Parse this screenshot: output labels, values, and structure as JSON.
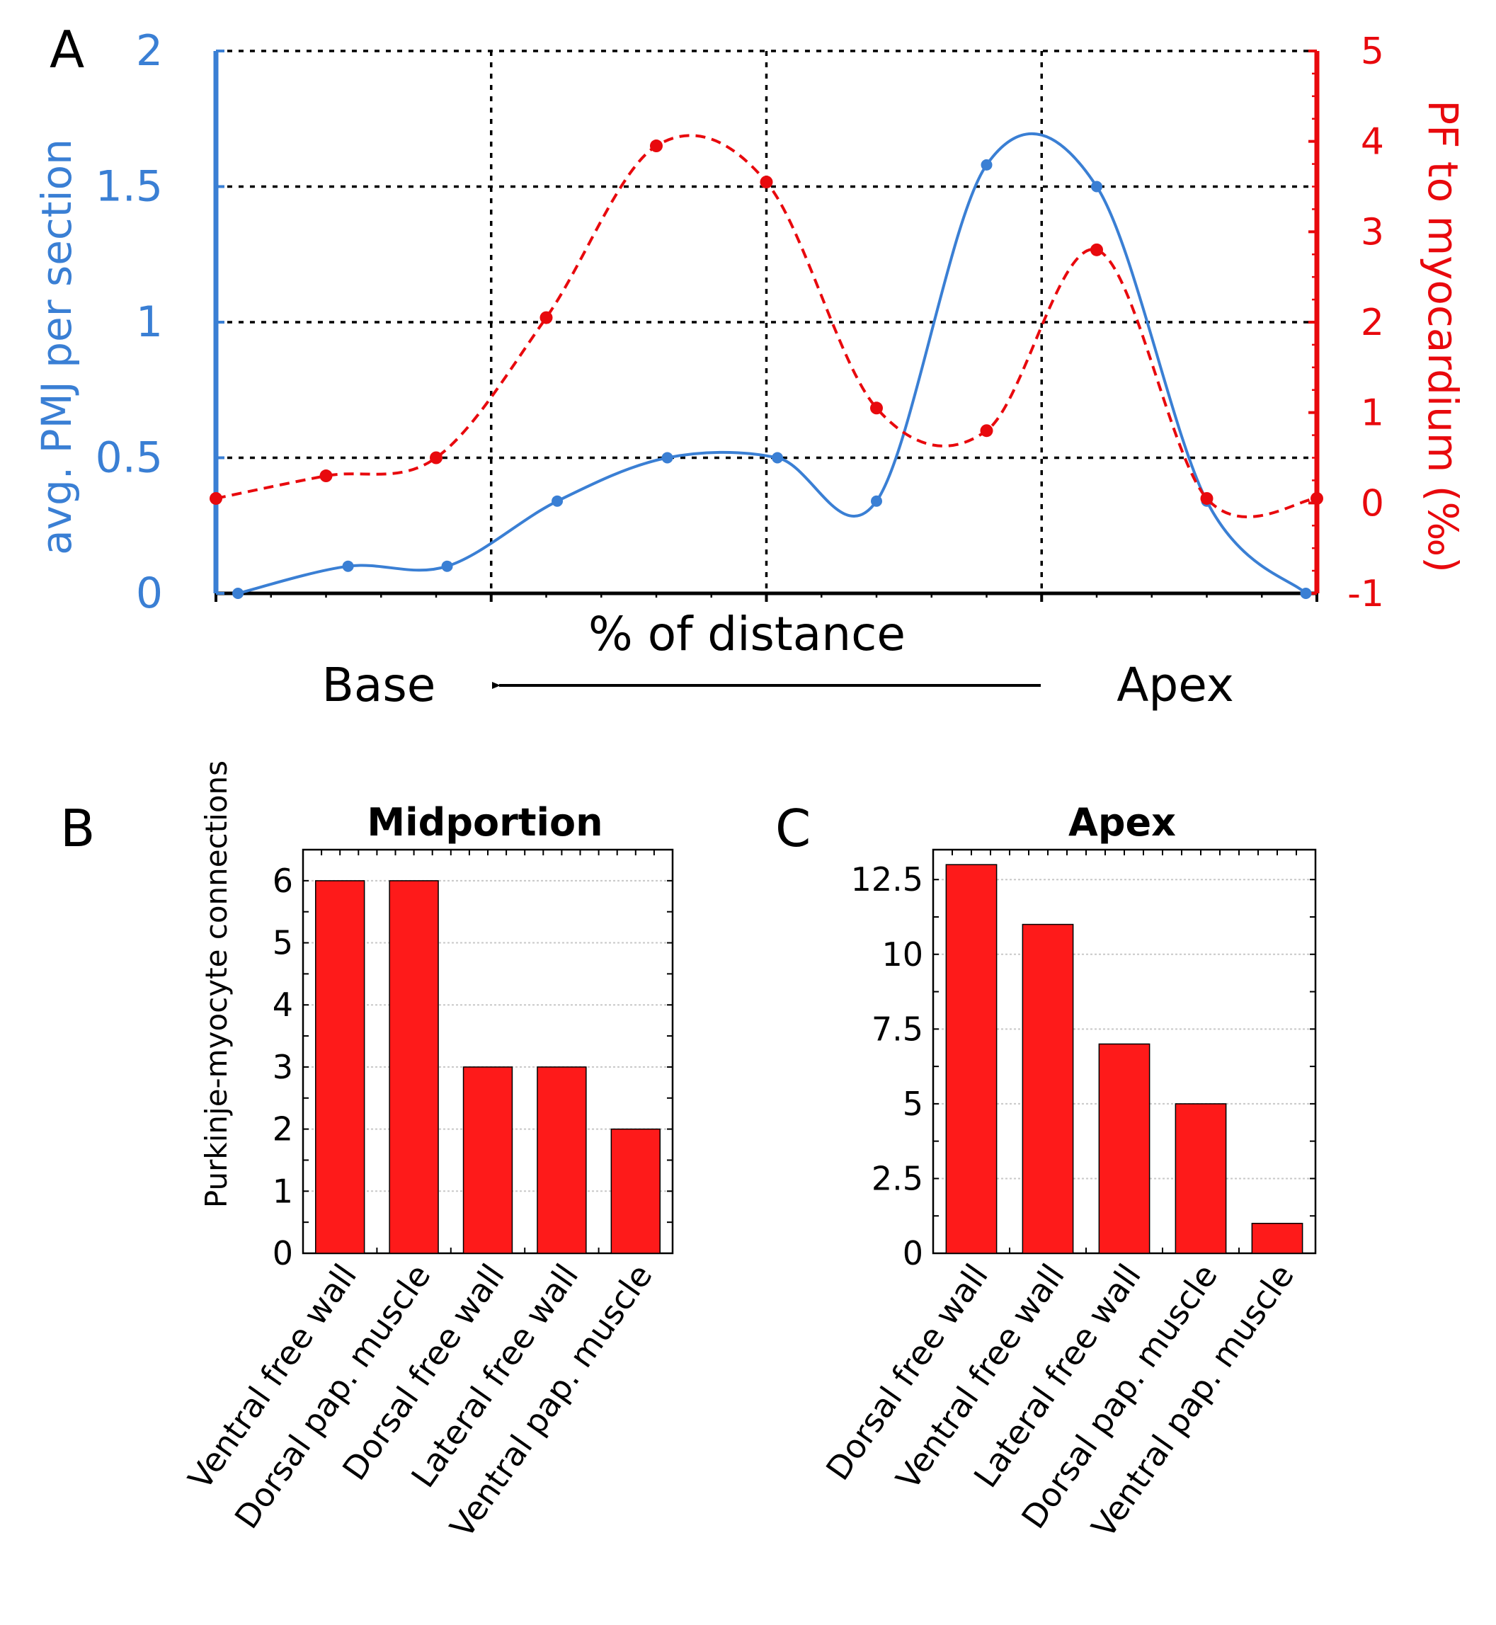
{
  "colors": {
    "pmj": "#3a7fd4",
    "pf": "#e8090d",
    "bar": "#fe1a1a",
    "grid": "#000000",
    "minor_grid": "#c8c8c8"
  },
  "panel_a": {
    "letter": "A",
    "xlabel": "% of distance",
    "base_label": "Base",
    "apex_label": "Apex",
    "left_ylabel": "avg. PMJ per section",
    "right_ylabel": "PF to myocardium (‰)",
    "left_ticks": [
      "0",
      "0.5",
      "1",
      "1.5",
      "2"
    ],
    "right_ticks": [
      "-1",
      "0",
      "1",
      "2",
      "3",
      "4",
      "5"
    ]
  },
  "panel_b": {
    "letter": "B",
    "title": "Midportion",
    "ylabel": "Purkinje-myocyte connections",
    "y_ticks": [
      "0",
      "1",
      "2",
      "3",
      "4",
      "5",
      "6"
    ]
  },
  "panel_c": {
    "letter": "C",
    "title": "Apex",
    "y_ticks": [
      "0",
      "2.5",
      "5",
      "7.5",
      "10",
      "12.5"
    ]
  },
  "chart_data": [
    {
      "type": "line",
      "title": "",
      "xlabel": "% of distance",
      "ylabel": "avg. PMJ per section",
      "xlim": [
        0,
        100
      ],
      "ylim": [
        0,
        2
      ],
      "grid": true,
      "series": [
        {
          "name": "avg. PMJ per section",
          "axis": "left",
          "style": "solid",
          "x": [
            2,
            12,
            21,
            31,
            41,
            51,
            60,
            70,
            80,
            90,
            99
          ],
          "y": [
            0,
            0.1,
            0.1,
            0.34,
            0.5,
            0.5,
            0.34,
            1.58,
            1.5,
            0.34,
            0
          ]
        },
        {
          "name": "PF to myocardium (‰)",
          "axis": "right",
          "style": "dashed",
          "ylim": [
            -1,
            5
          ],
          "x": [
            0,
            10,
            20,
            30,
            40,
            50,
            60,
            70,
            80,
            90,
            100
          ],
          "y": [
            0.05,
            0.3,
            0.5,
            2.05,
            3.95,
            3.55,
            1.05,
            0.8,
            2.8,
            0.05,
            0.05
          ]
        }
      ]
    },
    {
      "type": "bar",
      "title": "Midportion",
      "xlabel": "",
      "ylabel": "Purkinje-myocyte connections",
      "ylim": [
        0,
        6.5
      ],
      "categories": [
        "Ventral free wall",
        "Dorsal pap. muscle",
        "Dorsal free wall",
        "Lateral free wall",
        "Ventral pap. muscle"
      ],
      "values": [
        6,
        6,
        3,
        3,
        2
      ]
    },
    {
      "type": "bar",
      "title": "Apex",
      "xlabel": "",
      "ylabel": "",
      "ylim": [
        0,
        13.5
      ],
      "categories": [
        "Dorsal free wall",
        "Ventral free wall",
        "Lateral free wall",
        "Dorsal pap. muscle",
        "Ventral pap. muscle"
      ],
      "values": [
        13,
        11,
        7,
        5,
        1
      ]
    }
  ]
}
